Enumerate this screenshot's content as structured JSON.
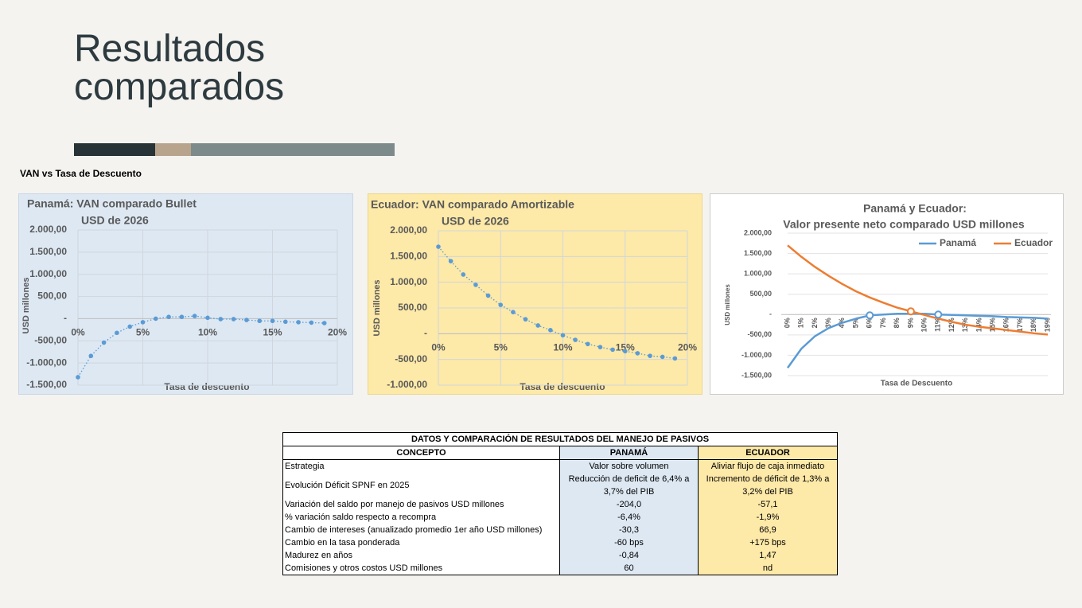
{
  "title": "Resultados comparados",
  "section_label": "VAN vs Tasa de Descuento",
  "chart_data": [
    {
      "type": "scatter",
      "title": "Panamá:  VAN comparado Bullet",
      "subtitle": "USD de 2026",
      "x_label": "Tasa de descuento",
      "y_label": "USD millones",
      "x": [
        0,
        1,
        2,
        3,
        4,
        5,
        6,
        7,
        8,
        9,
        10,
        11,
        12,
        13,
        14,
        15,
        16,
        17,
        18,
        19
      ],
      "values": [
        -1320,
        -840,
        -540,
        -320,
        -180,
        -80,
        0,
        40,
        40,
        60,
        20,
        -10,
        -10,
        -30,
        -50,
        -50,
        -70,
        -80,
        -90,
        -100
      ],
      "color": "#5b9bd5",
      "trendline": true,
      "grid": true,
      "xlim": [
        0,
        20
      ],
      "xticks": [
        {
          "value": 0,
          "label": "0%"
        },
        {
          "value": 5,
          "label": "5%"
        },
        {
          "value": 10,
          "label": "10%"
        },
        {
          "value": 15,
          "label": "15%"
        },
        {
          "value": 20,
          "label": "20%"
        }
      ],
      "ylim": [
        -1500,
        2000
      ],
      "yticks": [
        {
          "value": -1500,
          "label": "-1.500,00"
        },
        {
          "value": -1000,
          "label": "-1.000,00"
        },
        {
          "value": -500,
          "label": "-500,00"
        },
        {
          "value": 0,
          "label": "-"
        },
        {
          "value": 500,
          "label": "500,00"
        },
        {
          "value": 1000,
          "label": "1.000,00"
        },
        {
          "value": 1500,
          "label": "1.500,00"
        },
        {
          "value": 2000,
          "label": "2.000,00"
        }
      ]
    },
    {
      "type": "scatter",
      "title": "Ecuador:  VAN comparado Amortizable",
      "subtitle": "USD de 2026",
      "x_label": "Tasa de descuento",
      "y_label": "USD millones",
      "x": [
        0,
        1,
        2,
        3,
        4,
        5,
        6,
        7,
        8,
        9,
        10,
        11,
        12,
        13,
        14,
        15,
        16,
        17,
        18,
        19
      ],
      "values": [
        1690,
        1410,
        1150,
        950,
        740,
        560,
        420,
        280,
        160,
        70,
        -30,
        -120,
        -200,
        -260,
        -310,
        -340,
        -380,
        -430,
        -450,
        -480
      ],
      "color": "#5b9bd5",
      "trendline": true,
      "grid": true,
      "xlim": [
        0,
        20
      ],
      "xticks": [
        {
          "value": 0,
          "label": "0%"
        },
        {
          "value": 5,
          "label": "5%"
        },
        {
          "value": 10,
          "label": "10%"
        },
        {
          "value": 15,
          "label": "15%"
        },
        {
          "value": 20,
          "label": "20%"
        }
      ],
      "ylim": [
        -1000,
        2000
      ],
      "yticks": [
        {
          "value": -1000,
          "label": "-1.000,00"
        },
        {
          "value": -500,
          "label": "-500,00"
        },
        {
          "value": 0,
          "label": "-"
        },
        {
          "value": 500,
          "label": "500,00"
        },
        {
          "value": 1000,
          "label": "1.000,00"
        },
        {
          "value": 1500,
          "label": "1.500,00"
        },
        {
          "value": 2000,
          "label": "2.000,00"
        }
      ]
    },
    {
      "type": "line",
      "title": "Panamá y Ecuador:",
      "subtitle": "Valor presente neto comparado USD millones",
      "x_label": "Tasa de Descuento",
      "y_label": "USD millones",
      "categories": [
        "0%",
        "1%",
        "2%",
        "3%",
        "4%",
        "5%",
        "6%",
        "7%",
        "8%",
        "9%",
        "10%",
        "11%",
        "12%",
        "13%",
        "14%",
        "15%",
        "16%",
        "17%",
        "18%",
        "19%"
      ],
      "series": [
        {
          "name": "Panamá",
          "color": "#5b9bd5",
          "values": [
            -1310,
            -840,
            -530,
            -330,
            -200,
            -100,
            -20,
            0,
            20,
            20,
            20,
            0,
            -10,
            -20,
            -30,
            -40,
            -60,
            -70,
            -80,
            -100
          ]
        },
        {
          "name": "Ecuador",
          "color": "#ed7d31",
          "values": [
            1700,
            1420,
            1170,
            950,
            750,
            570,
            420,
            290,
            170,
            80,
            -10,
            -100,
            -180,
            -250,
            -300,
            -340,
            -380,
            -420,
            -460,
            -490
          ]
        }
      ],
      "highlighted": [
        {
          "series": 0,
          "index": 6
        },
        {
          "series": 1,
          "index": 9
        },
        {
          "series": 0,
          "index": 11
        }
      ],
      "legend": "top-right",
      "grid": true,
      "ylim": [
        -1500,
        2000
      ],
      "yticks": [
        {
          "value": -1500,
          "label": "-1.500,00"
        },
        {
          "value": -1000,
          "label": "-1.000,00"
        },
        {
          "value": -500,
          "label": "-500,00"
        },
        {
          "value": 0,
          "label": "-"
        },
        {
          "value": 500,
          "label": "500,00"
        },
        {
          "value": 1000,
          "label": "1.000,00"
        },
        {
          "value": 1500,
          "label": "1.500,00"
        },
        {
          "value": 2000,
          "label": "2.000,00"
        }
      ]
    }
  ],
  "table": {
    "title": "DATOS Y COMPARACIÓN DE RESULTADOS DEL MANEJO DE PASIVOS",
    "header": [
      "CONCEPTO",
      "PANAMÁ",
      "ECUADOR"
    ],
    "rows": [
      [
        "Estrategia",
        "Valor sobre volumen",
        "Aliviar flujo de caja inmediato"
      ],
      [
        "Evolución Déficit SPNF en 2025",
        "Reducción de deficit de 6,4% a 3,7% del PIB",
        "Incremento de déficit de 1,3% a 3,2% del PIB"
      ],
      [
        "Variación del saldo por manejo de pasivos USD millones",
        "-204,0",
        "-57,1"
      ],
      [
        "% variación saldo respecto a recompra",
        "-6,4%",
        "-1,9%"
      ],
      [
        "Cambio de intereses (anualizado promedio 1er año USD millones)",
        "-30,3",
        "66,9"
      ],
      [
        "Cambio en la tasa ponderada",
        "-60 bps",
        "+175 bps"
      ],
      [
        "Madurez en años",
        "-0,84",
        "1,47"
      ],
      [
        "Comisiones y otros costos USD millones",
        "60",
        "nd"
      ]
    ]
  }
}
